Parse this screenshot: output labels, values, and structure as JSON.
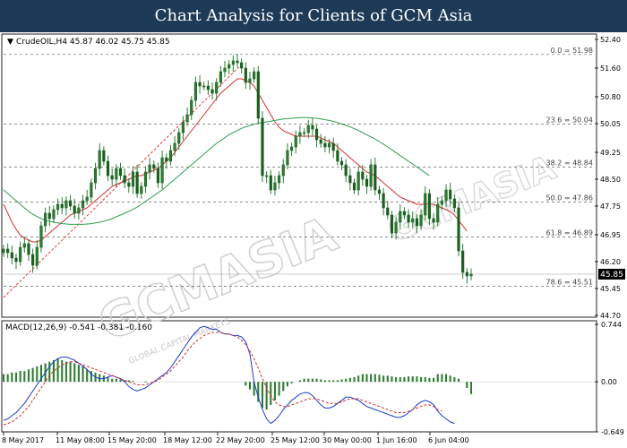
{
  "banner_title": "Chart Analysis for Clients of GCM Asia",
  "watermark": {
    "main": "GCMASIA",
    "sub": "GLOBAL CAPITAL MARKETS",
    "right": "GCMASIA"
  },
  "chart_data": [
    {
      "type": "candlestick",
      "instrument_label": "CrudeOIL,H4  45.87 46.02 45.75 45.85",
      "ylim": [
        44.7,
        52.4
      ],
      "y_ticks": [
        "52.40",
        "51.60",
        "50.80",
        "50.05",
        "49.25",
        "48.50",
        "47.75",
        "46.95",
        "46.20",
        "45.45",
        "44.70"
      ],
      "last_price": "45.85",
      "colors": {
        "up": "#2e7d32",
        "down": "#2e7d32",
        "sma_fast": "#d32f2f",
        "sma_slow": "#2e9e4f",
        "trendline": "#e53935",
        "fib": "#666666"
      },
      "fib_levels": [
        {
          "label": "0.0 = 51.98",
          "value": 51.98
        },
        {
          "label": "23.6 = 50.04",
          "value": 50.04
        },
        {
          "label": "38.2 = 48.84",
          "value": 48.84
        },
        {
          "label": "50.0 = 47.86",
          "value": 47.86
        },
        {
          "label": "61.8 = 46.89",
          "value": 46.89
        },
        {
          "label": "78.6 = 45.51",
          "value": 45.51
        }
      ],
      "x_labels": [
        "8 May 2017",
        "11 May 08:00",
        "15 May 20:00",
        "18 May 12:00",
        "22 May 20:00",
        "25 May 12:00",
        "30 May 00:00",
        "1 Jun 16:00",
        "6 Jun 04:00"
      ],
      "closes": [
        46.55,
        46.45,
        46.3,
        46.2,
        46.6,
        46.7,
        46.4,
        46.1,
        46.6,
        47.2,
        47.55,
        47.4,
        47.65,
        47.8,
        47.7,
        47.9,
        47.75,
        47.55,
        47.7,
        47.9,
        48.0,
        48.4,
        48.8,
        49.3,
        49.0,
        48.6,
        48.5,
        48.8,
        48.6,
        48.4,
        48.3,
        48.7,
        48.1,
        48.3,
        48.7,
        48.9,
        48.8,
        48.4,
        49.1,
        49.0,
        49.3,
        49.5,
        49.8,
        50.1,
        50.3,
        50.7,
        51.2,
        51.1,
        51.1,
        51.0,
        50.9,
        51.2,
        51.5,
        51.6,
        51.7,
        51.8,
        51.75,
        51.6,
        51.2,
        51.3,
        51.5,
        50.2,
        48.6,
        48.6,
        48.2,
        48.4,
        48.6,
        48.9,
        49.3,
        49.4,
        49.7,
        49.8,
        49.8,
        50.0,
        49.9,
        49.6,
        49.5,
        49.4,
        49.5,
        49.3,
        49.0,
        48.9,
        48.6,
        48.4,
        48.2,
        48.7,
        48.5,
        48.3,
        48.9,
        48.2,
        48.1,
        47.7,
        47.5,
        47.0,
        47.3,
        47.6,
        47.5,
        47.3,
        47.4,
        47.2,
        47.5,
        48.1,
        47.4,
        47.3,
        47.8,
        47.9,
        48.2,
        47.95,
        47.7,
        46.5,
        45.9,
        45.8,
        45.85
      ],
      "sma_fast": [
        47.8,
        47.55,
        47.3,
        47.1,
        46.95,
        46.85,
        46.8,
        46.75,
        46.75,
        46.8,
        46.9,
        47.0,
        47.1,
        47.2,
        47.3,
        47.4,
        47.5,
        47.55,
        47.6,
        47.65,
        47.7,
        47.8,
        47.9,
        48.0,
        48.1,
        48.2,
        48.3,
        48.35,
        48.4,
        48.45,
        48.5,
        48.55,
        48.6,
        48.6,
        48.65,
        48.7,
        48.75,
        48.8,
        48.9,
        49.0,
        49.1,
        49.25,
        49.4,
        49.55,
        49.7,
        49.85,
        50.0,
        50.15,
        50.3,
        50.45,
        50.6,
        50.75,
        50.9,
        51.0,
        51.1,
        51.2,
        51.3,
        51.3,
        51.25,
        51.2,
        51.1,
        50.9,
        50.7,
        50.5,
        50.3,
        50.1,
        49.95,
        49.85,
        49.8,
        49.75,
        49.7,
        49.7,
        49.7,
        49.7,
        49.7,
        49.7,
        49.65,
        49.6,
        49.55,
        49.5,
        49.4,
        49.3,
        49.2,
        49.1,
        49.0,
        48.9,
        48.8,
        48.7,
        48.65,
        48.6,
        48.5,
        48.4,
        48.3,
        48.2,
        48.1,
        48.0,
        47.95,
        47.9,
        47.85,
        47.8,
        47.8,
        47.8,
        47.8,
        47.8,
        47.75,
        47.7,
        47.65,
        47.6,
        47.5,
        47.35,
        47.2,
        47.05
      ],
      "sma_slow": [
        48.2,
        48.1,
        48.0,
        47.9,
        47.8,
        47.7,
        47.6,
        47.52,
        47.46,
        47.4,
        47.36,
        47.32,
        47.3,
        47.28,
        47.26,
        47.25,
        47.24,
        47.24,
        47.24,
        47.24,
        47.25,
        47.26,
        47.28,
        47.3,
        47.33,
        47.36,
        47.4,
        47.45,
        47.5,
        47.55,
        47.6,
        47.66,
        47.72,
        47.8,
        47.88,
        47.96,
        48.04,
        48.12,
        48.2,
        48.3,
        48.4,
        48.5,
        48.6,
        48.7,
        48.8,
        48.9,
        49.0,
        49.1,
        49.2,
        49.3,
        49.4,
        49.5,
        49.58,
        49.66,
        49.74,
        49.8,
        49.86,
        49.92,
        49.96,
        50.0,
        50.03,
        50.06,
        50.08,
        50.1,
        50.12,
        50.14,
        50.16,
        50.18,
        50.19,
        50.2,
        50.21,
        50.22,
        50.22,
        50.22,
        50.21,
        50.2,
        50.18,
        50.16,
        50.14,
        50.11,
        50.08,
        50.04,
        50.0,
        49.96,
        49.91,
        49.86,
        49.8,
        49.74,
        49.68,
        49.62,
        49.55,
        49.48,
        49.4,
        49.32,
        49.24,
        49.16,
        49.08,
        49.0,
        48.92,
        48.84,
        48.76,
        48.68,
        48.6
      ],
      "trendline": {
        "from": [
          0,
          45.2
        ],
        "to": [
          57,
          51.7
        ]
      }
    },
    {
      "type": "macd",
      "label": "MACD(12,26,9) -0.541 -0.381 -0.160",
      "ylim": [
        -0.649,
        0.744
      ],
      "y_ticks": [
        "0.744",
        "0.00",
        "-0.649"
      ],
      "histogram": [
        0.1,
        0.1,
        0.12,
        0.12,
        0.14,
        0.14,
        0.16,
        0.18,
        0.2,
        0.22,
        0.24,
        0.26,
        0.28,
        0.3,
        0.28,
        0.26,
        0.26,
        0.24,
        0.22,
        0.2,
        0.16,
        0.14,
        0.12,
        0.1,
        0.08,
        0.06,
        0.04,
        0.04,
        0.03,
        0.02,
        0.02,
        0.01,
        0.0,
        0.0,
        -0.01,
        0.0,
        0.0,
        0.0,
        0.0,
        0.0,
        0.0,
        0.0,
        0.0,
        0.0,
        0.0,
        0.0,
        0.0,
        0.0,
        0.0,
        0.0,
        0.0,
        0.0,
        0.0,
        0.0,
        0.0,
        0.0,
        0.0,
        0.0,
        -0.05,
        -0.1,
        -0.18,
        -0.26,
        -0.34,
        -0.36,
        -0.3,
        -0.24,
        -0.18,
        -0.12,
        -0.06,
        -0.02,
        0.0,
        0.02,
        0.04,
        0.04,
        0.04,
        0.04,
        0.03,
        0.02,
        0.02,
        0.02,
        0.02,
        0.03,
        0.04,
        0.05,
        0.06,
        0.08,
        0.1,
        0.1,
        0.1,
        0.1,
        0.09,
        0.08,
        0.08,
        0.07,
        0.06,
        0.06,
        0.06,
        0.07,
        0.07,
        0.07,
        0.06,
        0.06,
        0.05,
        0.05,
        0.1,
        0.1,
        0.1,
        0.08,
        0.06,
        0.04,
        0.0,
        -0.08,
        -0.16
      ],
      "macd": [
        -0.5,
        -0.48,
        -0.44,
        -0.4,
        -0.34,
        -0.28,
        -0.2,
        -0.12,
        -0.04,
        0.04,
        0.12,
        0.2,
        0.26,
        0.3,
        0.32,
        0.32,
        0.3,
        0.28,
        0.24,
        0.2,
        0.16,
        0.1,
        0.06,
        0.04,
        0.04,
        0.06,
        0.08,
        0.06,
        0.04,
        0.0,
        -0.06,
        -0.1,
        -0.12,
        -0.1,
        -0.08,
        -0.04,
        0.0,
        0.04,
        0.08,
        0.12,
        0.18,
        0.26,
        0.34,
        0.42,
        0.5,
        0.58,
        0.64,
        0.7,
        0.72,
        0.7,
        0.68,
        0.68,
        0.64,
        0.62,
        0.62,
        0.6,
        0.6,
        0.58,
        0.52,
        0.36,
        0.0,
        -0.2,
        -0.36,
        -0.48,
        -0.54,
        -0.5,
        -0.44,
        -0.36,
        -0.3,
        -0.24,
        -0.2,
        -0.16,
        -0.14,
        -0.14,
        -0.18,
        -0.24,
        -0.3,
        -0.34,
        -0.34,
        -0.32,
        -0.28,
        -0.24,
        -0.2,
        -0.2,
        -0.22,
        -0.24,
        -0.28,
        -0.32,
        -0.34,
        -0.36,
        -0.38,
        -0.4,
        -0.42,
        -0.44,
        -0.46,
        -0.46,
        -0.44,
        -0.4,
        -0.36,
        -0.3,
        -0.26,
        -0.24,
        -0.26,
        -0.3,
        -0.38,
        -0.44,
        -0.48,
        -0.52,
        -0.54
      ],
      "signal": [
        -0.56,
        -0.54,
        -0.52,
        -0.48,
        -0.44,
        -0.38,
        -0.32,
        -0.24,
        -0.16,
        -0.08,
        0.0,
        0.08,
        0.14,
        0.18,
        0.22,
        0.24,
        0.26,
        0.26,
        0.24,
        0.22,
        0.2,
        0.18,
        0.16,
        0.14,
        0.12,
        0.1,
        0.08,
        0.06,
        0.04,
        0.02,
        0.0,
        -0.02,
        -0.04,
        -0.04,
        -0.04,
        -0.02,
        0.0,
        0.02,
        0.06,
        0.1,
        0.14,
        0.2,
        0.26,
        0.32,
        0.4,
        0.46,
        0.52,
        0.56,
        0.6,
        0.62,
        0.64,
        0.64,
        0.64,
        0.62,
        0.62,
        0.6,
        0.58,
        0.54,
        0.48,
        0.4,
        0.3,
        0.18,
        0.04,
        -0.08,
        -0.18,
        -0.26,
        -0.3,
        -0.32,
        -0.32,
        -0.3,
        -0.28,
        -0.26,
        -0.24,
        -0.22,
        -0.22,
        -0.22,
        -0.24,
        -0.26,
        -0.28,
        -0.28,
        -0.28,
        -0.26,
        -0.24,
        -0.22,
        -0.22,
        -0.22,
        -0.24,
        -0.26,
        -0.28,
        -0.3,
        -0.32,
        -0.34,
        -0.36,
        -0.38,
        -0.4,
        -0.4,
        -0.4,
        -0.38,
        -0.36,
        -0.34,
        -0.32,
        -0.3,
        -0.3,
        -0.32,
        -0.36,
        -0.38
      ]
    }
  ]
}
